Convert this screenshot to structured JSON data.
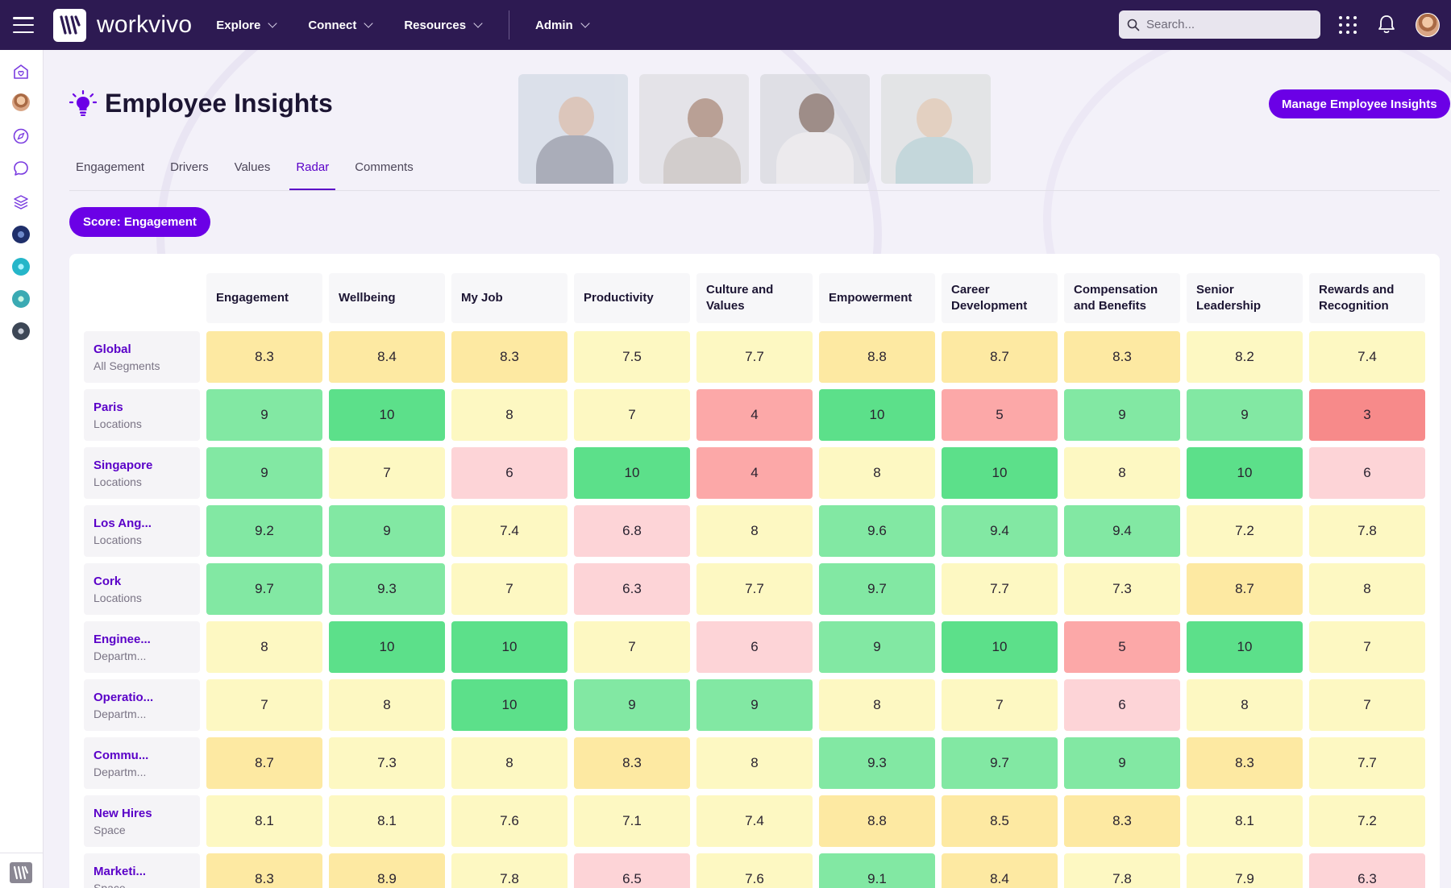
{
  "app": {
    "brand": "workvivo",
    "nav": [
      {
        "label": "Explore"
      },
      {
        "label": "Connect"
      },
      {
        "label": "Resources"
      },
      {
        "label": "Admin"
      }
    ],
    "search_placeholder": "Search..."
  },
  "page": {
    "title": "Employee Insights",
    "manage_button": "Manage Employee Insights",
    "tabs": [
      {
        "label": "Engagement",
        "active": false
      },
      {
        "label": "Drivers",
        "active": false
      },
      {
        "label": "Values",
        "active": false
      },
      {
        "label": "Radar",
        "active": true
      },
      {
        "label": "Comments",
        "active": false
      }
    ],
    "score_button": "Score: Engagement"
  },
  "colors": {
    "accent": "#6b00e6",
    "topbar": "#2d1a52",
    "scale": {
      "dark_green": "#5ce08a",
      "green": "#82e8a3",
      "yellow_light": "#fdf8c2",
      "yellow": "#fde9a2",
      "pink_light": "#fdd4d7",
      "pink": "#fca8a8",
      "red": "#f78a8a"
    }
  },
  "chart_data": {
    "type": "heatmap",
    "title": "Radar",
    "columns": [
      "Engagement",
      "Wellbeing",
      "My Job",
      "Productivity",
      "Culture and Values",
      "Empowerment",
      "Career Development",
      "Compensation and Benefits",
      "Senior Leadership",
      "Rewards and Recognition"
    ],
    "rows": [
      {
        "name": "Global",
        "type": "All Segments",
        "values": [
          "8.3",
          "8.4",
          "8.3",
          "7.5",
          "7.7",
          "8.8",
          "8.7",
          "8.3",
          "8.2",
          "7.4"
        ]
      },
      {
        "name": "Paris",
        "type": "Locations",
        "values": [
          "9",
          "10",
          "8",
          "7",
          "4",
          "10",
          "5",
          "9",
          "9",
          "3"
        ]
      },
      {
        "name": "Singapore",
        "type": "Locations",
        "values": [
          "9",
          "7",
          "6",
          "10",
          "4",
          "8",
          "10",
          "8",
          "10",
          "6"
        ]
      },
      {
        "name": "Los Ang...",
        "type": "Locations",
        "values": [
          "9.2",
          "9",
          "7.4",
          "6.8",
          "8",
          "9.6",
          "9.4",
          "9.4",
          "7.2",
          "7.8"
        ]
      },
      {
        "name": "Cork",
        "type": "Locations",
        "values": [
          "9.7",
          "9.3",
          "7",
          "6.3",
          "7.7",
          "9.7",
          "7.7",
          "7.3",
          "8.7",
          "8"
        ]
      },
      {
        "name": "Enginee...",
        "type": "Departm...",
        "values": [
          "8",
          "10",
          "10",
          "7",
          "6",
          "9",
          "10",
          "5",
          "10",
          "7"
        ]
      },
      {
        "name": "Operatio...",
        "type": "Departm...",
        "values": [
          "7",
          "8",
          "10",
          "9",
          "9",
          "8",
          "7",
          "6",
          "8",
          "7"
        ]
      },
      {
        "name": "Commu...",
        "type": "Departm...",
        "values": [
          "8.7",
          "7.3",
          "8",
          "8.3",
          "8",
          "9.3",
          "9.7",
          "9",
          "8.3",
          "7.7"
        ]
      },
      {
        "name": "New Hires",
        "type": "Space",
        "values": [
          "8.1",
          "8.1",
          "7.6",
          "7.1",
          "7.4",
          "8.8",
          "8.5",
          "8.3",
          "8.1",
          "7.2"
        ]
      },
      {
        "name": "Marketi...",
        "type": "Space",
        "values": [
          "8.3",
          "8.9",
          "7.8",
          "6.5",
          "7.6",
          "9.1",
          "8.4",
          "7.8",
          "7.9",
          "6.3"
        ]
      }
    ]
  }
}
